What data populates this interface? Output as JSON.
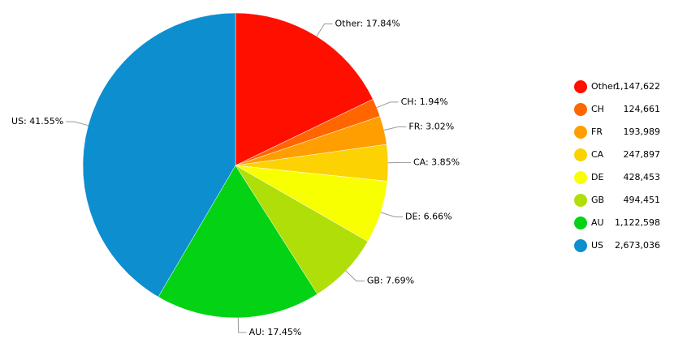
{
  "chart_data": {
    "type": "pie",
    "categories": [
      "Other",
      "CH",
      "FR",
      "CA",
      "DE",
      "GB",
      "AU",
      "US"
    ],
    "values": [
      1147622,
      124661,
      193989,
      247897,
      428453,
      494451,
      1122598,
      2673036
    ],
    "value_labels": [
      "1,147,622",
      "124,661",
      "193,989",
      "247,897",
      "428,453",
      "494,451",
      "1,122,598",
      "2,673,036"
    ],
    "slice_labels": [
      "Other: 17.84%",
      "CH: 1.94%",
      "FR: 3.02%",
      "CA: 3.85%",
      "DE: 6.66%",
      "GB: 7.69%",
      "AU: 17.45%",
      "US: 41.55%"
    ],
    "colors": [
      "#ff0f00",
      "#ff6600",
      "#ff9e01",
      "#fcd202",
      "#f8ff01",
      "#b0de09",
      "#04d215",
      "#0d8ecf"
    ],
    "legend": "right"
  }
}
